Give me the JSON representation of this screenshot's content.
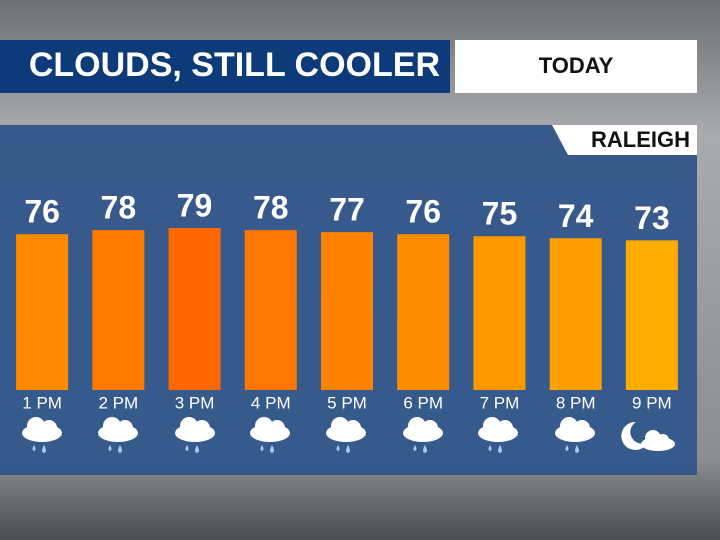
{
  "chart_data": {
    "type": "bar",
    "title": "CLOUDS, STILL COOLER",
    "subtitle": "TODAY",
    "location": "RALEIGH",
    "categories": [
      "1 PM",
      "2 PM",
      "3 PM",
      "4 PM",
      "5 PM",
      "6 PM",
      "7 PM",
      "8 PM",
      "9 PM"
    ],
    "values": [
      76,
      78,
      79,
      78,
      77,
      76,
      75,
      74,
      73
    ],
    "colors": [
      "#ff8a00",
      "#ff7a00",
      "#ff6800",
      "#ff7600",
      "#ff8200",
      "#ff8c00",
      "#ff9700",
      "#ffa000",
      "#ffab00"
    ],
    "ylim": [
      0,
      100
    ]
  }
}
